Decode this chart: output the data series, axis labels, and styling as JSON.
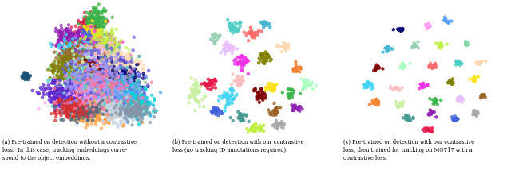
{
  "figure_width": 6.4,
  "figure_height": 2.24,
  "dpi": 100,
  "background_color": "#ffffff",
  "captions": [
    "(a) Pre-trained on detection without a contrastive\nloss.  In this case, tracking embeddings corre-\nspond to the object embeddings.",
    "(b) Pre-trained on detection with our contrastive\nloss (no tracking ID annotations required).",
    "(c) Pre-trained on detection with our contrastive\nloss, then trained for tracking on MOT17 with a\ncontrastive loss."
  ],
  "caption_fontsize": 4.8,
  "colors": [
    "#e6194b",
    "#3cb44b",
    "#ffe119",
    "#4363d8",
    "#f58231",
    "#911eb4",
    "#42d4f4",
    "#f032e6",
    "#bfef45",
    "#fabebe",
    "#469990",
    "#e6beff",
    "#9A6324",
    "#c8f0a0",
    "#800000",
    "#aaffc3",
    "#808000",
    "#ffd8b1",
    "#000075",
    "#a9a9a9",
    "#ff6b6b",
    "#4ecdc4",
    "#45b7d1",
    "#96ceb4",
    "#88d8b0",
    "#ff9ff3",
    "#54a0ff",
    "#5f27cd",
    "#00d2d3",
    "#ff9f43",
    "#c8d6e5",
    "#576574",
    "#d63031",
    "#8395a7",
    "#6c5ce7",
    "#a29bfe",
    "#fd79a8",
    "#e17055",
    "#74b9ff",
    "#55efc4"
  ]
}
